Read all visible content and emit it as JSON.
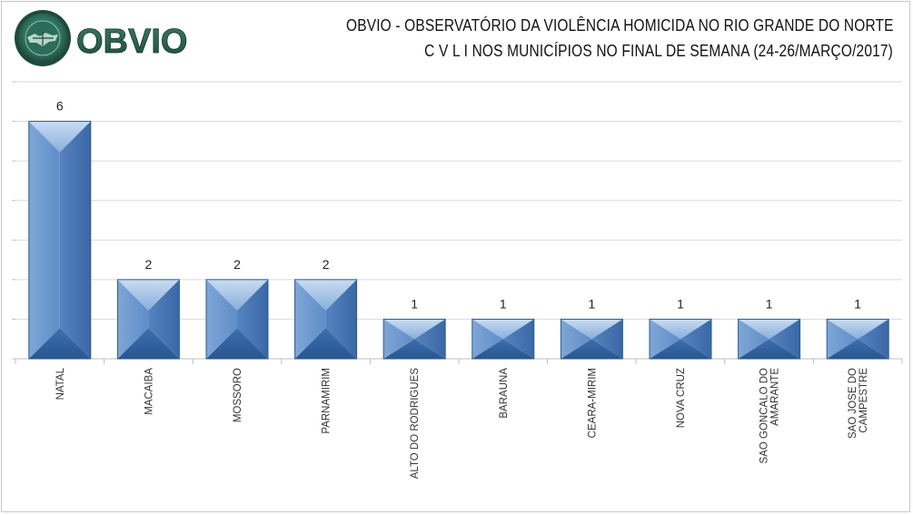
{
  "logo": {
    "brand_text": "OBVIO",
    "ring_text": "OBSERVATÓRIO DA VIOLÊNCIA LETAL INTENCIONAL",
    "ring_top": "OBVIO",
    "colors": {
      "dark_green": "#234a3a",
      "teal": "#3f8f7e",
      "light_green": "#9fd3b5"
    }
  },
  "title": {
    "line1": "OBVIO - OBSERVATÓRIO DA VIOLÊNCIA HOMICIDA NO RIO GRANDE DO NORTE",
    "line2": "C V L I  NOS MUNICÍPIOS NO FINAL DE SEMANA  (24-26/MARÇO/2017)"
  },
  "chart_data": {
    "type": "bar",
    "categories": [
      "NATAL",
      "MACAIBA",
      "MOSSORO",
      "PARNAMIRIM",
      "ALTO DO RODRIGUES",
      "BARAUNA",
      "CEARA-MIRIM",
      "NOVA CRUZ",
      "SAO GONCALO DO AMARANTE",
      "SAO JOSE DO CAMPESTRE"
    ],
    "values": [
      6,
      2,
      2,
      2,
      1,
      1,
      1,
      1,
      1,
      1
    ],
    "ylim": [
      0,
      7
    ],
    "grid": true,
    "bar_color": "#4f81bd",
    "data_labels": true
  }
}
